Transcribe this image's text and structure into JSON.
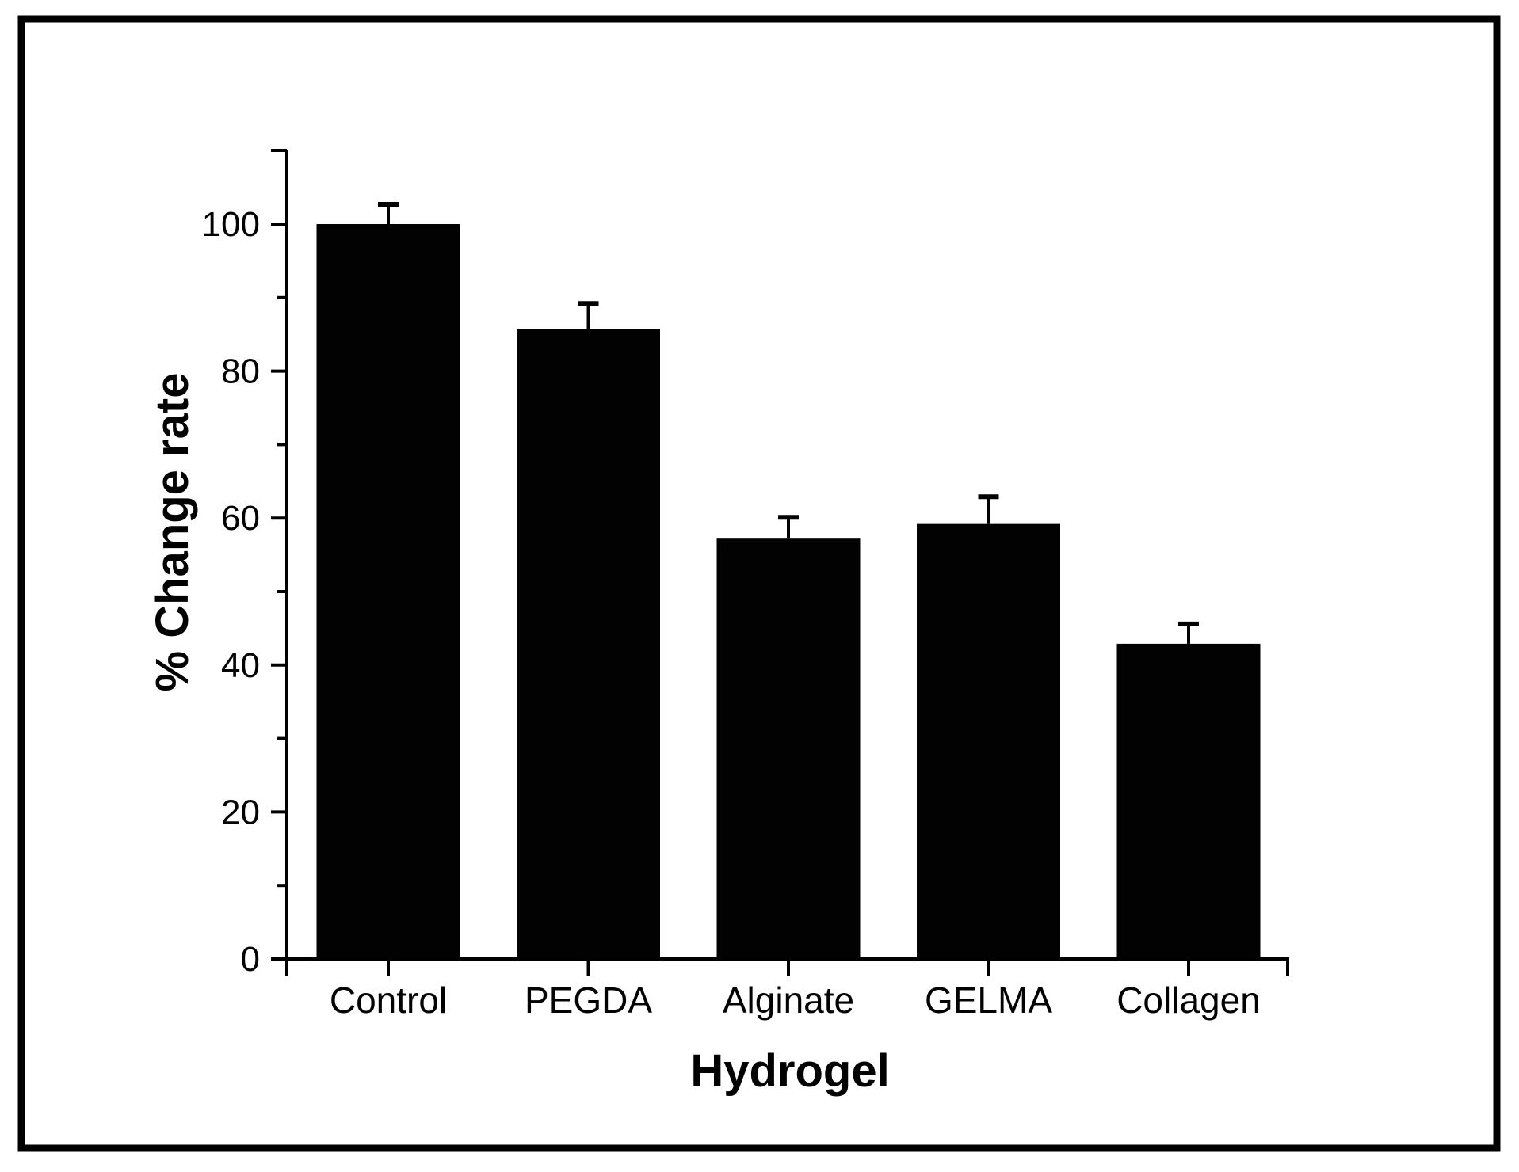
{
  "figure": {
    "background": "#ffffff",
    "border_color": "#000000"
  },
  "chart_data": {
    "type": "bar",
    "title": "",
    "xlabel": "Hydrogel",
    "ylabel": "% Change rate",
    "categories": [
      "Control",
      "PEGDA",
      "Alginate",
      "GELMA",
      "Collagen"
    ],
    "values": [
      100,
      85.7,
      57.2,
      59.2,
      42.9
    ],
    "errors_plus": [
      2.7,
      3.5,
      2.9,
      3.7,
      2.7
    ],
    "ylim": [
      0,
      110
    ],
    "y_major_ticks": [
      0,
      20,
      40,
      60,
      80,
      100
    ],
    "y_minor_ticks": [
      10,
      30,
      50,
      70,
      90
    ],
    "y_tick_labels": [
      "0",
      "20",
      "40",
      "60",
      "80",
      "100"
    ],
    "bar_color": "#020202",
    "error_bar_color": "#020202",
    "axis_color": "#000000",
    "grid": false,
    "legend": null
  }
}
